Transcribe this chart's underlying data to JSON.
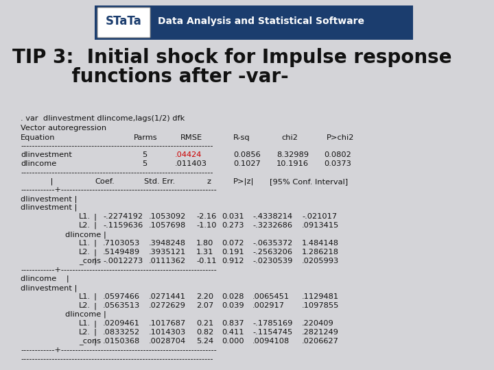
{
  "title_line1": "TIP 3: Initial shock for Impulse response",
  "title_line2": "        functions after -var-",
  "bg_color": "#d4d4d8",
  "stata_bar_color": "#1a3a6b",
  "stata_text": "Data Analysis and Statistical Software",
  "command_line": ". var  dlinvestment dlincome,lags(1/2) dfk",
  "vector_label": "Vector autoregression",
  "table1_rows": [
    [
      "dlinvestment",
      "5",
      ".04424",
      "0.0856",
      "8.32989",
      "0.0802"
    ],
    [
      "dlincome",
      "5",
      ".011403",
      "0.1027",
      "10.1916",
      "0.0373"
    ]
  ],
  "rmse_red_row": 0,
  "table2_sections": [
    {
      "sec_header1": "dlinvestment |",
      "sec_header2": "dlinvestment |",
      "rows": [
        [
          "L1.",
          "-.2274192",
          ".1053092",
          "-2.16",
          "0.031",
          "-.4338214",
          "-.021017"
        ],
        [
          "L2.",
          "-.1159636",
          ".1057698",
          "-1.10",
          "0.273",
          "-.3232686",
          ".0913415"
        ]
      ],
      "sub_header": "dlincome |",
      "sub_rows": [
        [
          "L1.",
          ".7103053",
          ".3948248",
          "1.80",
          "0.072",
          "-.0635372",
          "1.484148"
        ],
        [
          "L2.",
          ".5149489",
          ".3935121",
          "1.31",
          "0.191",
          "-.2563206",
          "1.286218"
        ],
        [
          "_cons",
          "-.0012273",
          ".0111362",
          "-0.11",
          "0.912",
          "-.0230539",
          ".0205993"
        ]
      ]
    },
    {
      "sec_header1": "dlincome    |",
      "sec_header2": "dlinvestment |",
      "rows": [
        [
          "L1.",
          ".0597466",
          ".0271441",
          "2.20",
          "0.028",
          ".0065451",
          ".1129481"
        ],
        [
          "L2.",
          ".0563513",
          ".0272629",
          "2.07",
          "0.039",
          ".002917",
          ".1097855"
        ]
      ],
      "sub_header": "dlincome |",
      "sub_rows": [
        [
          "L1.",
          ".0209461",
          ".1017687",
          "0.21",
          "0.837",
          "-.1785169",
          ".220409"
        ],
        [
          "L2.",
          ".0833252",
          ".1014303",
          "0.82",
          "0.411",
          "-.1154745",
          ".2821249"
        ],
        [
          "_cons",
          ".0150368",
          ".0028704",
          "5.24",
          "0.000",
          ".0094108",
          ".0206627"
        ]
      ]
    }
  ],
  "font_mono": "Courier New",
  "font_title": "Arial Black",
  "title_fontsize": 20,
  "body_fontsize": 8.2,
  "text_color": "#111111"
}
